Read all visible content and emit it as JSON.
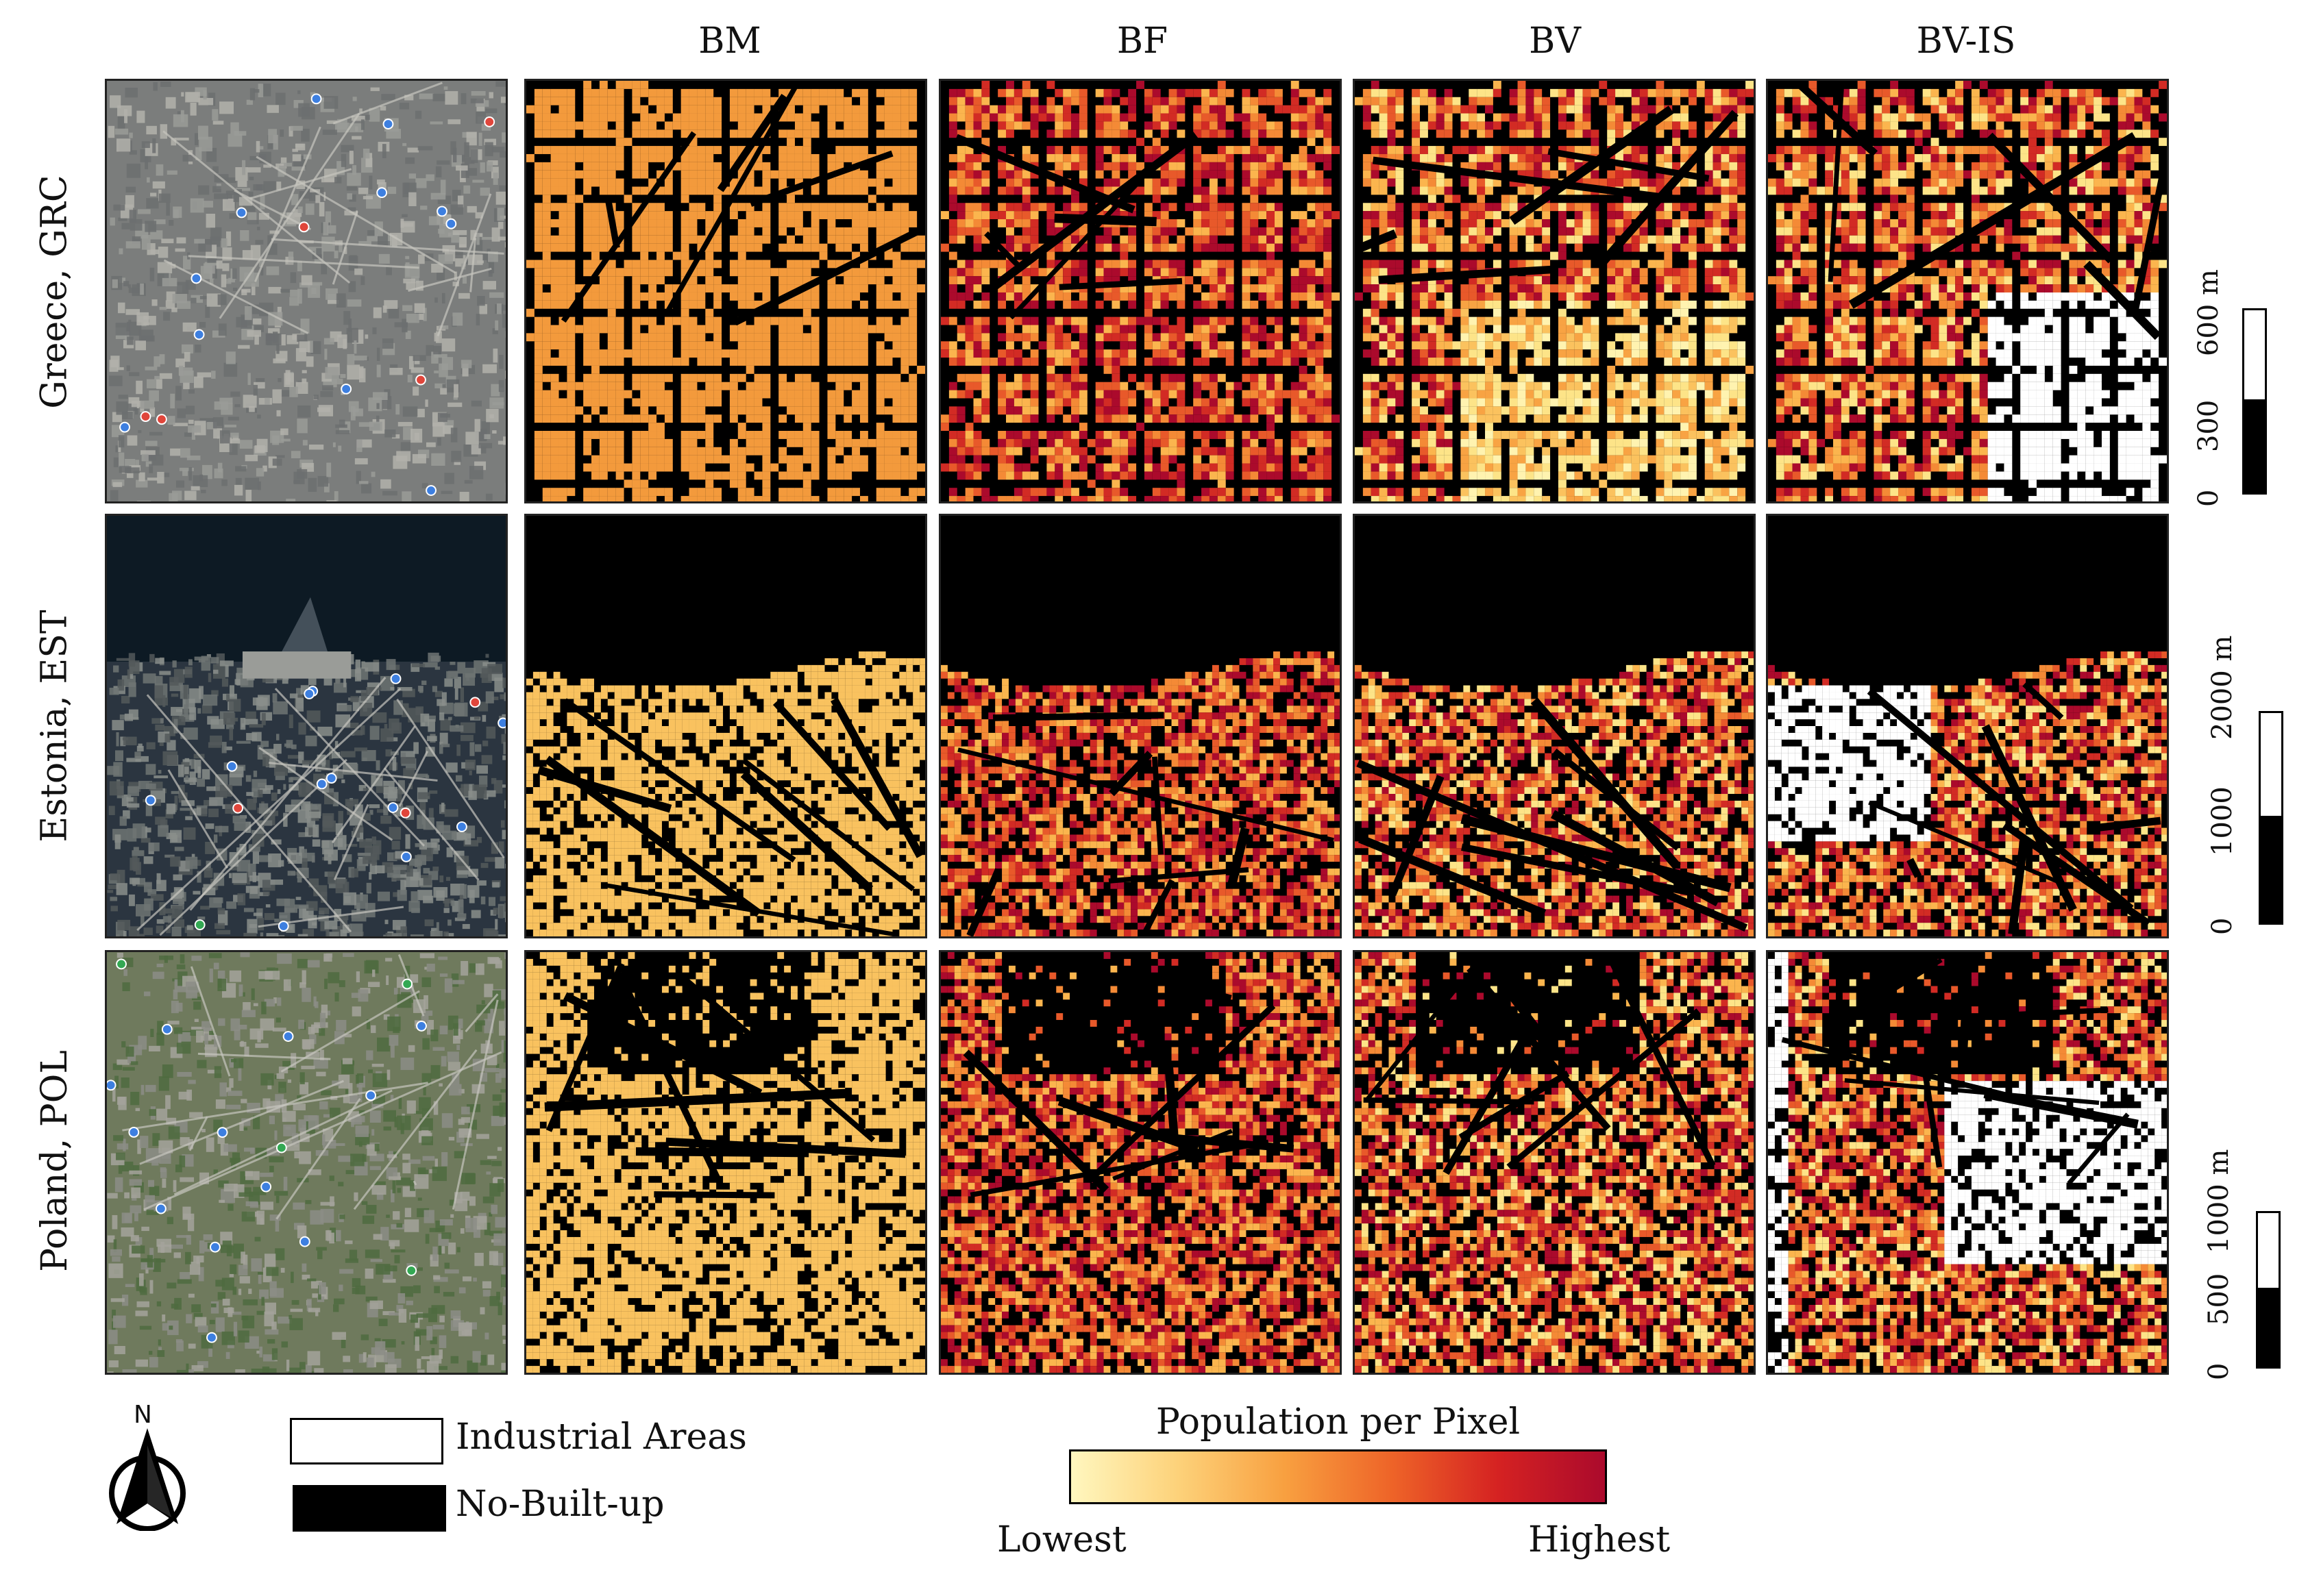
{
  "columns": [
    "BM",
    "BF",
    "BV",
    "BV-IS"
  ],
  "rows": [
    {
      "label": "Greece, GRC",
      "scale": {
        "ticks": [
          "0",
          "300",
          "600 m"
        ]
      }
    },
    {
      "label": "Estonia, EST",
      "scale": {
        "ticks": [
          "0",
          "1000",
          "2000 m"
        ]
      }
    },
    {
      "label": "Poland, POL",
      "scale": {
        "ticks": [
          "0",
          "500",
          "1000 m"
        ]
      }
    }
  ],
  "north_arrow": {
    "label": "N"
  },
  "legend": {
    "industrial": "Industrial Areas",
    "no_built": "No-Built-up",
    "ramp_title": "Population per Pixel",
    "ramp_low": "Lowest",
    "ramp_high": "Highest",
    "ramp_colors": [
      "#fff7bf",
      "#fdd27a",
      "#f8a040",
      "#ee6428",
      "#d52222",
      "#ab0a2c"
    ]
  },
  "colors": {
    "no_built": "#000000",
    "industrial": "#ffffff",
    "bm_grc": "#f39a3c",
    "bm_est_pol": "#f9c25f"
  }
}
